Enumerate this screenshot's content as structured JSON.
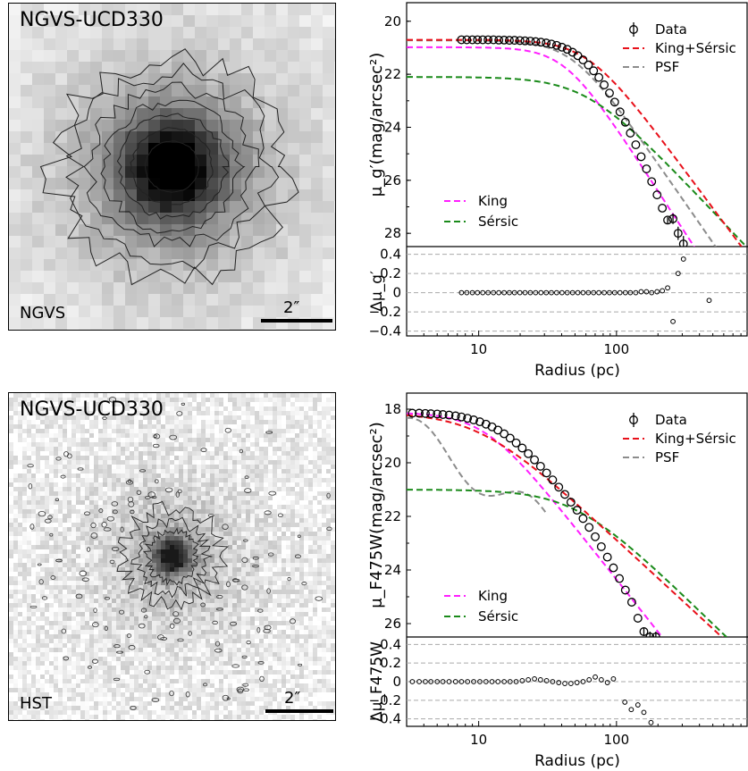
{
  "panels": [
    {
      "image": {
        "title": "NGVS-UCD330",
        "source": "NGVS",
        "scale_label": "2″",
        "style": "ngvs"
      },
      "chart_data": {
        "type": "scatter",
        "xlabel": "Radius (pc)",
        "ylabel_html": "μ_g′(mag/arcsec²)",
        "resid_label": "Δμ_g′",
        "xscale": "log",
        "xlim": [
          3,
          900
        ],
        "ylim": [
          28.5,
          19.3
        ],
        "yticks": [
          20,
          22,
          24,
          26,
          28
        ],
        "resid_ylim": [
          -0.45,
          0.48
        ],
        "resid_yticks": [
          0.4,
          0.2,
          0,
          -0.2,
          -0.4
        ],
        "resid_yticklabels": [
          "0.4",
          "0.2",
          "0",
          "−0.2",
          "−0.4"
        ],
        "xticks": [
          10,
          100
        ],
        "xticklabels": [
          "10",
          "100"
        ],
        "legend_top": [
          {
            "label": "Data",
            "kind": "errorpoint"
          },
          {
            "label": "King+Sérsic",
            "kind": "dash",
            "color": "#e8101a"
          },
          {
            "label": "PSF",
            "kind": "dash",
            "color": "#8c8c8c"
          }
        ],
        "legend_bottom": [
          {
            "label": "King",
            "kind": "dash",
            "color": "#ff1eff"
          },
          {
            "label": "Sérsic",
            "kind": "dash",
            "color": "#1a8a1a"
          }
        ],
        "params": {
          "king_mu0": 21.0,
          "king_r": 40,
          "sersic_mu0": 22.1,
          "sersic_r": 60,
          "psf_mu0": 20.7,
          "psf_r": 45,
          "total_r": 60,
          "total_mu0": 20.7
        },
        "data_r": [
          7.5,
          8.2,
          9,
          9.8,
          10.7,
          11.7,
          12.8,
          14,
          15.3,
          16.7,
          18.2,
          19.9,
          21.7,
          23.7,
          25.9,
          28.3,
          30.9,
          33.7,
          36.8,
          40.2,
          43.9,
          48,
          52.4,
          57.2,
          62.5,
          68.2,
          74.5,
          81.4,
          88.9,
          97,
          106,
          116,
          126,
          138,
          151,
          165,
          180,
          197,
          215,
          235,
          257,
          280,
          306
        ],
        "data_mu": [
          20.7,
          20.7,
          20.7,
          20.7,
          20.7,
          20.7,
          20.7,
          20.71,
          20.71,
          20.72,
          20.72,
          20.73,
          20.74,
          20.75,
          20.77,
          20.79,
          20.82,
          20.86,
          20.91,
          20.98,
          21.06,
          21.17,
          21.3,
          21.46,
          21.65,
          21.87,
          22.12,
          22.4,
          22.71,
          23.05,
          23.42,
          23.81,
          24.22,
          24.66,
          25.11,
          25.57,
          26.05,
          26.55,
          27.05,
          27.5,
          27.45,
          28.0,
          28.4
        ],
        "data_err": [
          0,
          0,
          0,
          0,
          0,
          0,
          0,
          0,
          0,
          0,
          0,
          0,
          0,
          0,
          0,
          0,
          0,
          0,
          0,
          0,
          0,
          0,
          0,
          0,
          0,
          0,
          0,
          0,
          0,
          0,
          0,
          0,
          0,
          0,
          0,
          0,
          0,
          0,
          0,
          0.12,
          0.2,
          0.25,
          0.3
        ],
        "resid_r": [
          7.5,
          8.2,
          9,
          9.8,
          10.7,
          11.7,
          12.8,
          14,
          15.3,
          16.7,
          18.2,
          19.9,
          21.7,
          23.7,
          25.9,
          28.3,
          30.9,
          33.7,
          36.8,
          40.2,
          43.9,
          48,
          52.4,
          57.2,
          62.5,
          68.2,
          74.5,
          81.4,
          88.9,
          97,
          106,
          116,
          126,
          138,
          151,
          165,
          180,
          197,
          215,
          235,
          257,
          280,
          306,
          470
        ],
        "resid_v": [
          0,
          0,
          0,
          0,
          0,
          0,
          0,
          0,
          0,
          0,
          0,
          0,
          0,
          0,
          0,
          0,
          0,
          0,
          0,
          0,
          0,
          0,
          0,
          0,
          0,
          0,
          0,
          0,
          0,
          0,
          0,
          0,
          0,
          0,
          0.01,
          0.01,
          0,
          0.01,
          0.02,
          0.05,
          -0.3,
          0.2,
          0.35,
          -0.08
        ]
      }
    },
    {
      "image": {
        "title": "NGVS-UCD330",
        "source": "HST",
        "scale_label": "2″",
        "style": "hst"
      },
      "chart_data": {
        "type": "scatter",
        "xlabel": "Radius (pc)",
        "ylabel_html": "μ_F475W(mag/arcsec²)",
        "resid_label": "Δμ_F475W",
        "xscale": "log",
        "xlim": [
          3,
          900
        ],
        "ylim": [
          26.5,
          17.4
        ],
        "yticks": [
          18,
          20,
          22,
          24,
          26
        ],
        "resid_ylim": [
          -0.48,
          0.48
        ],
        "resid_yticks": [
          0.4,
          0.2,
          0,
          -0.2,
          -0.4
        ],
        "resid_yticklabels": [
          "0.4",
          "0.2",
          "0",
          "−0.2",
          "−0.4"
        ],
        "xticks": [
          10,
          100
        ],
        "xticklabels": [
          "10",
          "100"
        ],
        "legend_top": [
          {
            "label": "Data",
            "kind": "errorpoint"
          },
          {
            "label": "King+Sérsic",
            "kind": "dash",
            "color": "#e8101a"
          },
          {
            "label": "PSF",
            "kind": "dash",
            "color": "#8c8c8c"
          }
        ],
        "legend_bottom": [
          {
            "label": "King",
            "kind": "dash",
            "color": "#ff1eff"
          },
          {
            "label": "Sérsic",
            "kind": "dash",
            "color": "#1a8a1a"
          }
        ],
        "data_r": [
          3.3,
          3.7,
          4.1,
          4.5,
          5,
          5.5,
          6.1,
          6.8,
          7.5,
          8.3,
          9.2,
          10.2,
          11.3,
          12.5,
          13.8,
          15.3,
          16.9,
          18.7,
          20.7,
          22.9,
          25.4,
          28.1,
          31.1,
          34.4,
          38.1,
          42.2,
          46.7,
          51.7,
          57.2,
          63.3,
          70.1,
          77.6,
          85.9,
          95,
          105,
          116,
          129,
          143,
          158,
          175,
          193
        ],
        "data_mu": [
          18.15,
          18.15,
          18.16,
          18.17,
          18.18,
          18.2,
          18.22,
          18.25,
          18.29,
          18.34,
          18.4,
          18.47,
          18.56,
          18.66,
          18.78,
          18.92,
          19.08,
          19.26,
          19.45,
          19.66,
          19.89,
          20.13,
          20.38,
          20.64,
          20.91,
          21.18,
          21.47,
          21.77,
          22.08,
          22.41,
          22.76,
          23.13,
          23.52,
          23.92,
          24.32,
          24.75,
          25.2,
          25.8,
          26.3,
          26.5,
          26.5
        ],
        "data_err": [
          0,
          0,
          0,
          0,
          0,
          0,
          0,
          0,
          0,
          0,
          0,
          0,
          0,
          0,
          0,
          0,
          0,
          0,
          0,
          0,
          0,
          0,
          0,
          0,
          0,
          0,
          0,
          0,
          0,
          0,
          0,
          0,
          0,
          0,
          0,
          0,
          0,
          0,
          0.15,
          0.2,
          0.2
        ],
        "resid_r": [
          3.3,
          3.7,
          4.1,
          4.5,
          5,
          5.5,
          6.1,
          6.8,
          7.5,
          8.3,
          9.2,
          10.2,
          11.3,
          12.5,
          13.8,
          15.3,
          16.9,
          18.7,
          20.7,
          22.9,
          25.4,
          28.1,
          31.1,
          34.4,
          38.1,
          42.2,
          46.7,
          51.7,
          57.2,
          63.3,
          70.1,
          77.6,
          85.9,
          95,
          115,
          128,
          143,
          158,
          178
        ],
        "resid_v": [
          0,
          0,
          0,
          0,
          0,
          0,
          0,
          0,
          0,
          0,
          0,
          0,
          0,
          0,
          0,
          0,
          0,
          0,
          0.01,
          0.02,
          0.03,
          0.02,
          0.01,
          0,
          -0.01,
          -0.02,
          -0.02,
          -0.01,
          0,
          0.02,
          0.05,
          0.02,
          -0.01,
          0.03,
          -0.22,
          -0.3,
          -0.25,
          -0.33,
          -0.44
        ]
      }
    }
  ]
}
